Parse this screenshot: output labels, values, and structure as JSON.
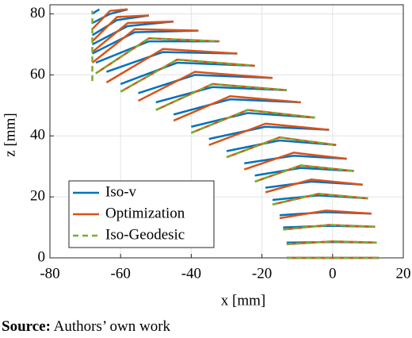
{
  "chart_data": {
    "type": "curve-family",
    "xlabel": "x [mm]",
    "ylabel": "z [mm]",
    "xlim": [
      -80,
      20
    ],
    "ylim": [
      0,
      83
    ],
    "xticks": [
      -80,
      -60,
      -40,
      -20,
      0,
      20
    ],
    "yticks": [
      0,
      20,
      40,
      60,
      80
    ],
    "grid": true,
    "legend": "lower left",
    "series": [
      {
        "name": "Iso-v",
        "color": "#0072BD",
        "dashed": false,
        "curves": [
          {
            "x": [
              -13,
              0,
              13
            ],
            "values": [
              0,
              0,
              0
            ]
          },
          {
            "x": [
              -13,
              0,
              12.5
            ],
            "values": [
              5,
              5.2,
              5
            ]
          },
          {
            "x": [
              -14,
              -1,
              12
            ],
            "values": [
              10,
              10.5,
              10.2
            ]
          },
          {
            "x": [
              -15,
              -2,
              11
            ],
            "values": [
              14,
              15,
              14.5
            ]
          },
          {
            "x": [
              -17,
              -4,
              10
            ],
            "values": [
              19,
              20.5,
              19.5
            ]
          },
          {
            "x": [
              -19,
              -6,
              8.5
            ],
            "values": [
              23,
              25,
              24
            ]
          },
          {
            "x": [
              -22,
              -9,
              6
            ],
            "values": [
              27,
              29.5,
              28.5
            ]
          },
          {
            "x": [
              -25,
              -11,
              4
            ],
            "values": [
              31,
              33.5,
              32.5
            ]
          },
          {
            "x": [
              -30,
              -15,
              1
            ],
            "values": [
              35,
              38.5,
              37
            ]
          },
          {
            "x": [
              -35,
              -19,
              -1
            ],
            "values": [
              39,
              43,
              42
            ]
          },
          {
            "x": [
              -40,
              -24,
              -5
            ],
            "values": [
              43,
              47.5,
              46
            ]
          },
          {
            "x": [
              -45,
              -29,
              -9
            ],
            "values": [
              47,
              52,
              51
            ]
          },
          {
            "x": [
              -50,
              -34,
              -13
            ],
            "values": [
              51,
              56,
              55
            ]
          },
          {
            "x": [
              -55,
              -39,
              -17
            ],
            "values": [
              54,
              60,
              59
            ]
          },
          {
            "x": [
              -60,
              -44,
              -22
            ],
            "values": [
              57,
              64,
              63
            ]
          },
          {
            "x": [
              -64,
              -48,
              -27
            ],
            "values": [
              61,
              67.5,
              67
            ]
          },
          {
            "x": [
              -67,
              -52,
              -32
            ],
            "values": [
              64,
              71,
              71
            ]
          },
          {
            "x": [
              -68,
              -56,
              -38
            ],
            "values": [
              67,
              74,
              74.5
            ]
          },
          {
            "x": [
              -68,
              -58,
              -45
            ],
            "values": [
              70,
              76,
              77.5
            ]
          },
          {
            "x": [
              -68,
              -61,
              -52
            ],
            "values": [
              73,
              78,
              79.5
            ]
          },
          {
            "x": [
              -68,
              -63,
              -58
            ],
            "values": [
              77,
              80,
              81.5
            ]
          },
          {
            "x": [
              -68,
              -67,
              -66
            ],
            "values": [
              80,
              80.8,
              81.5
            ]
          }
        ]
      },
      {
        "name": "Optimization",
        "color": "#D95319",
        "dashed": false,
        "curves": [
          {
            "x": [
              -13,
              0,
              13
            ],
            "values": [
              0,
              0,
              0
            ]
          },
          {
            "x": [
              -13,
              0,
              12.5
            ],
            "values": [
              4.5,
              5.4,
              5
            ]
          },
          {
            "x": [
              -14,
              -1,
              12
            ],
            "values": [
              9.3,
              10.8,
              10.2
            ]
          },
          {
            "x": [
              -15,
              -2,
              11
            ],
            "values": [
              13,
              15.5,
              14.5
            ]
          },
          {
            "x": [
              -17,
              -4,
              10
            ],
            "values": [
              17.5,
              21,
              19.5
            ]
          },
          {
            "x": [
              -19,
              -6,
              8.5
            ],
            "values": [
              21.5,
              25.7,
              24
            ]
          },
          {
            "x": [
              -22,
              -9,
              6
            ],
            "values": [
              25,
              30.3,
              28.5
            ]
          },
          {
            "x": [
              -25,
              -11,
              4
            ],
            "values": [
              29,
              34.5,
              32.5
            ]
          },
          {
            "x": [
              -30,
              -15,
              1
            ],
            "values": [
              33,
              39.5,
              37
            ]
          },
          {
            "x": [
              -35,
              -19,
              -1
            ],
            "values": [
              37,
              44,
              42
            ]
          },
          {
            "x": [
              -40,
              -24,
              -5
            ],
            "values": [
              41,
              48.5,
              46
            ]
          },
          {
            "x": [
              -45,
              -29,
              -9
            ],
            "values": [
              45,
              53,
              51
            ]
          },
          {
            "x": [
              -50,
              -34,
              -13
            ],
            "values": [
              48.5,
              57,
              55
            ]
          },
          {
            "x": [
              -55,
              -39,
              -17
            ],
            "values": [
              51.5,
              61,
              59
            ]
          },
          {
            "x": [
              -60,
              -44,
              -22
            ],
            "values": [
              54.5,
              65,
              63
            ]
          },
          {
            "x": [
              -64,
              -48,
              -27
            ],
            "values": [
              57.5,
              68.5,
              67
            ]
          },
          {
            "x": [
              -67,
              -52,
              -32
            ],
            "values": [
              60.5,
              72,
              71
            ]
          },
          {
            "x": [
              -68,
              -56,
              -38
            ],
            "values": [
              64,
              75,
              74.5
            ]
          },
          {
            "x": [
              -68,
              -58,
              -45
            ],
            "values": [
              67.5,
              77,
              77.5
            ]
          },
          {
            "x": [
              -68,
              -61,
              -52
            ],
            "values": [
              71,
              79,
              79.5
            ]
          },
          {
            "x": [
              -68,
              -63,
              -58
            ],
            "values": [
              75,
              81,
              81.5
            ]
          }
        ]
      },
      {
        "name": "Iso-Geodesic",
        "color": "#77AC30",
        "dashed": true,
        "curves": [
          {
            "x": [
              -13,
              0,
              13
            ],
            "values": [
              0,
              0,
              0
            ]
          },
          {
            "x": [
              -13,
              0,
              12.5
            ],
            "values": [
              4.5,
              5.4,
              5
            ]
          },
          {
            "x": [
              -14,
              -1,
              12
            ],
            "values": [
              9.3,
              10.8,
              10.2
            ]
          },
          {
            "x": [
              -17,
              -4,
              10
            ],
            "values": [
              17.5,
              21,
              19.5
            ]
          },
          {
            "x": [
              -22,
              -9,
              6
            ],
            "values": [
              25,
              30.3,
              28.5
            ]
          },
          {
            "x": [
              -30,
              -15,
              1
            ],
            "values": [
              33,
              39.5,
              37
            ]
          },
          {
            "x": [
              -40,
              -24,
              -5
            ],
            "values": [
              41,
              48.5,
              46
            ]
          },
          {
            "x": [
              -50,
              -34,
              -13
            ],
            "values": [
              48.5,
              57,
              55
            ]
          },
          {
            "x": [
              -60,
              -44,
              -22
            ],
            "values": [
              54.5,
              65,
              63
            ]
          },
          {
            "x": [
              -67,
              -52,
              -32
            ],
            "values": [
              60.5,
              72,
              71
            ]
          },
          {
            "x": [
              -68,
              -68,
              -68
            ],
            "values": [
              58,
              70,
              81
            ]
          }
        ]
      }
    ]
  },
  "caption": {
    "label": "Source:",
    "text": "Authors’ own work"
  }
}
